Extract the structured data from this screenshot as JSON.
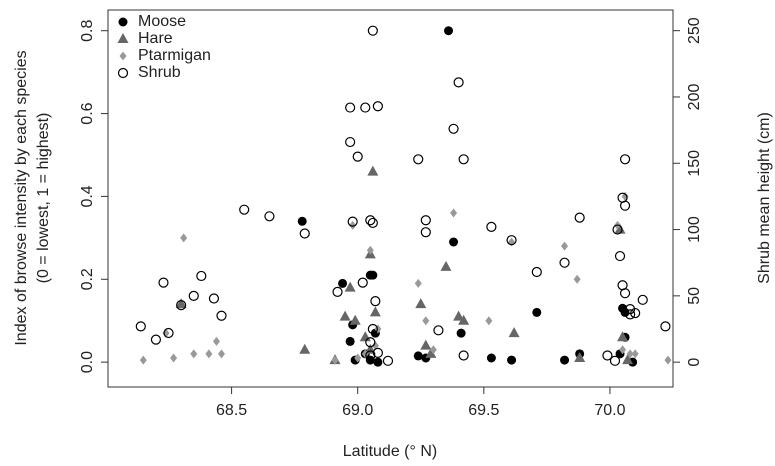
{
  "chart_data": {
    "type": "scatter",
    "xlabel": "Latitude (° N)",
    "ylabel": [
      "Index of browse intensity by each species",
      "(0 = lowest, 1 = highest)"
    ],
    "y2label": "Shrub mean height (cm)",
    "xlim": [
      68.01,
      70.25
    ],
    "xticks": [
      {
        "value": 68.5,
        "label": "68.5"
      },
      {
        "value": 69,
        "label": "69.0"
      },
      {
        "value": 69.5,
        "label": "69.5"
      },
      {
        "value": 70,
        "label": "70.0"
      }
    ],
    "ylim": [
      -0.06,
      0.85
    ],
    "yticks": [
      {
        "value": 0,
        "label": "0.0"
      },
      0.2,
      0.4,
      0.6,
      0.8
    ],
    "y2lim": [
      -18.75,
      265.6
    ],
    "y2ticks": [
      0,
      50,
      100,
      150,
      200,
      250
    ],
    "legend": "top-left",
    "series": [
      {
        "name": "Moose",
        "color": "#000000",
        "marker": "circle",
        "x": [
          68.78,
          68.94,
          68.97,
          68.98,
          68.99,
          69.03,
          69.05,
          69.06,
          69.07,
          69.05,
          69.08,
          69.24,
          69.27,
          69.36,
          69.38,
          69.41,
          69.53,
          69.61,
          69.71,
          69.82,
          69.88,
          70.04,
          70.05,
          70.06,
          70.09,
          70.06
        ],
        "values": [
          0.34,
          0.19,
          0.05,
          0.09,
          0.005,
          0.02,
          0.005,
          0.21,
          0.07,
          0.21,
          0.0,
          0.015,
          0.01,
          0.8,
          0.29,
          0.07,
          0.01,
          0.005,
          0.12,
          0.005,
          0.02,
          0.02,
          0.13,
          0.12,
          0.0,
          0.06
        ]
      },
      {
        "name": "Hare",
        "color": "#666666",
        "marker": "triangle",
        "x": [
          68.3,
          68.79,
          68.91,
          68.95,
          68.97,
          68.99,
          69.03,
          69.05,
          69.06,
          69.07,
          69.05,
          69.25,
          69.27,
          69.29,
          69.35,
          69.4,
          69.42,
          69.62,
          69.88,
          70.04,
          70.05,
          70.07
        ],
        "values": [
          0.14,
          0.03,
          0.005,
          0.11,
          0.18,
          0.1,
          0.06,
          0.26,
          0.46,
          0.12,
          0.03,
          0.14,
          0.04,
          0.02,
          0.23,
          0.11,
          0.1,
          0.07,
          0.01,
          0.32,
          0.06,
          0.005
        ]
      },
      {
        "name": "Ptarmigan",
        "color": "#999999",
        "marker": "diamond",
        "x": [
          68.15,
          68.24,
          68.27,
          68.31,
          68.35,
          68.41,
          68.44,
          68.46,
          68.91,
          68.98,
          69.0,
          69.03,
          69.05,
          69.07,
          69.08,
          69.24,
          69.27,
          69.3,
          69.38,
          69.52,
          69.61,
          69.82,
          69.87,
          70.03,
          70.06,
          70.05,
          70.08,
          70.1,
          70.23
        ],
        "values": [
          0.005,
          0.07,
          0.01,
          0.3,
          0.02,
          0.02,
          0.05,
          0.02,
          0.005,
          0.33,
          0.01,
          0.02,
          0.27,
          0.04,
          0.08,
          0.19,
          0.1,
          0.03,
          0.36,
          0.1,
          0.29,
          0.28,
          0.2,
          0.33,
          0.4,
          0.03,
          0.02,
          0.02,
          0.005
        ]
      },
      {
        "name": "Shrub",
        "color": "#000000",
        "marker": "open-circle",
        "axis": "y2",
        "x": [
          68.14,
          68.2,
          68.23,
          68.25,
          68.3,
          68.35,
          68.38,
          68.43,
          68.46,
          68.55,
          68.65,
          68.79,
          68.92,
          68.97,
          69.0,
          68.97,
          69.03,
          68.98,
          69.05,
          69.08,
          69.06,
          69.02,
          69.07,
          69.05,
          69.08,
          69.12,
          69.24,
          69.27,
          69.27,
          69.32,
          69.4,
          69.42,
          69.38,
          69.06,
          69.53,
          69.61,
          69.71,
          69.82,
          69.88,
          69.05,
          69.06,
          70.06,
          70.05,
          70.06,
          70.04,
          70.03,
          70.05,
          70.06,
          70.08,
          70.1,
          70.13,
          70.22,
          70.08,
          70.02,
          69.99,
          69.42
        ],
        "values": [
          27,
          17,
          60,
          22,
          43,
          50,
          65,
          48,
          35,
          115,
          110,
          97,
          53,
          166,
          155,
          192,
          192,
          106,
          107,
          193,
          105,
          60,
          46,
          15,
          7,
          1,
          153,
          107,
          98,
          24,
          211,
          153,
          176,
          250,
          102,
          92,
          68,
          75,
          109,
          5,
          25,
          153,
          124,
          118,
          80,
          100,
          58,
          52,
          40,
          37,
          47,
          27,
          36,
          1,
          5,
          5
        ]
      }
    ]
  }
}
